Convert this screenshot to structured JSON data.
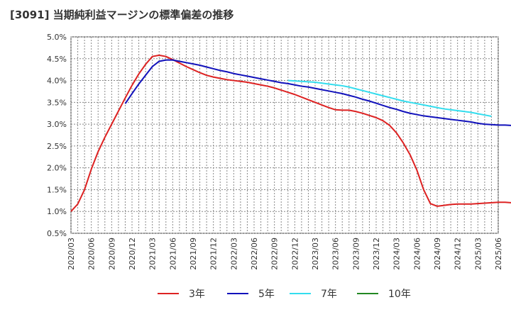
{
  "chart_data": {
    "type": "line",
    "title": "[3091]  当期純利益マージンの標準偏差の推移",
    "xlabel": "",
    "ylabel": "",
    "ylim": [
      0.5,
      5.0
    ],
    "y_ticks": [
      "5.0%",
      "4.5%",
      "4.0%",
      "3.5%",
      "3.0%",
      "2.5%",
      "2.0%",
      "1.5%",
      "1.0%",
      "0.5%"
    ],
    "y_tick_values": [
      5.0,
      4.5,
      4.0,
      3.5,
      3.0,
      2.5,
      2.0,
      1.5,
      1.0,
      0.5
    ],
    "x_ticks": [
      "2020/03",
      "2020/06",
      "2020/09",
      "2020/12",
      "2021/03",
      "2021/06",
      "2021/09",
      "2021/12",
      "2022/03",
      "2022/06",
      "2022/09",
      "2022/12",
      "2023/03",
      "2023/06",
      "2023/09",
      "2023/12",
      "2024/03",
      "2024/06",
      "2024/09",
      "2024/12",
      "2025/03",
      "2025/06"
    ],
    "grid": true,
    "legend_position": "bottom",
    "series": [
      {
        "name": "3年",
        "color": "#dd2222",
        "start": "2020/03",
        "values": [
          1.0,
          1.17,
          1.5,
          1.97,
          2.37,
          2.7,
          3.0,
          3.3,
          3.6,
          3.89,
          4.15,
          4.37,
          4.55,
          4.58,
          4.55,
          4.48,
          4.4,
          4.32,
          4.25,
          4.18,
          4.12,
          4.08,
          4.05,
          4.02,
          4.0,
          3.98,
          3.96,
          3.93,
          3.9,
          3.87,
          3.83,
          3.78,
          3.73,
          3.68,
          3.62,
          3.56,
          3.5,
          3.44,
          3.38,
          3.33,
          3.32,
          3.32,
          3.29,
          3.25,
          3.2,
          3.15,
          3.08,
          2.97,
          2.8,
          2.57,
          2.3,
          1.95,
          1.5,
          1.18,
          1.12,
          1.14,
          1.16,
          1.17,
          1.17,
          1.17,
          1.18,
          1.19,
          1.2,
          1.21,
          1.21,
          1.2,
          1.19
        ]
      },
      {
        "name": "5年",
        "color": "#1111bb",
        "start": "2020/11",
        "values": [
          3.47,
          3.7,
          3.92,
          4.12,
          4.32,
          4.44,
          4.47,
          4.47,
          4.44,
          4.41,
          4.38,
          4.35,
          4.31,
          4.27,
          4.23,
          4.2,
          4.16,
          4.13,
          4.1,
          4.07,
          4.04,
          4.01,
          3.98,
          3.95,
          3.93,
          3.9,
          3.87,
          3.85,
          3.82,
          3.79,
          3.76,
          3.73,
          3.7,
          3.66,
          3.62,
          3.57,
          3.53,
          3.48,
          3.43,
          3.38,
          3.34,
          3.29,
          3.25,
          3.22,
          3.19,
          3.17,
          3.15,
          3.13,
          3.11,
          3.09,
          3.07,
          3.05,
          3.02,
          3.0,
          2.99,
          2.98,
          2.98,
          2.97,
          2.96,
          2.95
        ]
      },
      {
        "name": "7年",
        "color": "#33ddee",
        "start": "2022/11",
        "values": [
          4.0,
          3.99,
          3.98,
          3.97,
          3.96,
          3.94,
          3.92,
          3.9,
          3.88,
          3.85,
          3.81,
          3.77,
          3.73,
          3.69,
          3.65,
          3.61,
          3.57,
          3.53,
          3.5,
          3.47,
          3.44,
          3.41,
          3.38,
          3.35,
          3.33,
          3.31,
          3.29,
          3.27,
          3.24,
          3.21,
          3.18
        ]
      },
      {
        "name": "10年",
        "color": "#228822",
        "start": "2020/03",
        "values": []
      }
    ]
  }
}
